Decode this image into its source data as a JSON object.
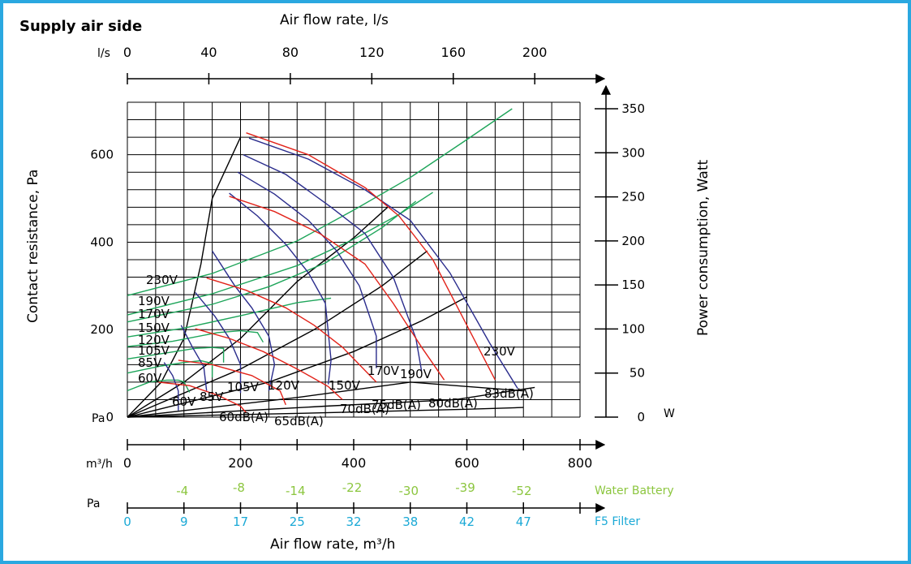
{
  "chart_data": {
    "type": "line",
    "title": "Supply air side",
    "x_top_label": "Air flow rate, l/s",
    "x_top_unit": "l/s",
    "x_top_ticks": [
      "0",
      "40",
      "80",
      "120",
      "160",
      "200"
    ],
    "x_bottom_label": "Air flow rate, m³/h",
    "x_bottom_unit": "m³/h",
    "x_bottom_ticks": [
      "0",
      "200",
      "400",
      "600",
      "800"
    ],
    "y_left_label": "Contact resistance, Pa",
    "y_left_unit": "Pa",
    "y_left_ticks": [
      "0",
      "200",
      "400",
      "600"
    ],
    "y_right_label": "Power consumption, Watt",
    "y_right_unit": "W",
    "y_right_ticks": [
      "0",
      "50",
      "100",
      "150",
      "200",
      "250",
      "300",
      "350"
    ],
    "xlim": [
      0,
      800
    ],
    "ylim": [
      0,
      720
    ],
    "grid": true,
    "colors": {
      "red": "#e2231a",
      "blue": "#2a2c8c",
      "green": "#1ea55a",
      "black": "#000000",
      "water": "#8cc63f",
      "filter": "#1ba9d6"
    },
    "pressure_curves": [
      {
        "label": "230V",
        "color": "blue",
        "points": [
          [
            215,
            638
          ],
          [
            320,
            590
          ],
          [
            420,
            520
          ],
          [
            500,
            450
          ],
          [
            570,
            330
          ],
          [
            640,
            170
          ],
          [
            690,
            65
          ]
        ]
      },
      {
        "label": "190V",
        "color": "blue",
        "points": [
          [
            205,
            600
          ],
          [
            280,
            555
          ],
          [
            360,
            480
          ],
          [
            420,
            420
          ],
          [
            470,
            320
          ],
          [
            510,
            180
          ],
          [
            520,
            105
          ]
        ]
      },
      {
        "label": "170V",
        "color": "blue",
        "points": [
          [
            195,
            560
          ],
          [
            260,
            510
          ],
          [
            320,
            450
          ],
          [
            370,
            380
          ],
          [
            410,
            300
          ],
          [
            440,
            185
          ],
          [
            440,
            112
          ]
        ]
      },
      {
        "label": "150V",
        "color": "blue",
        "points": [
          [
            180,
            512
          ],
          [
            230,
            460
          ],
          [
            280,
            395
          ],
          [
            320,
            330
          ],
          [
            350,
            260
          ],
          [
            360,
            130
          ],
          [
            355,
            75
          ]
        ]
      },
      {
        "label": "120V",
        "color": "blue",
        "points": [
          [
            150,
            380
          ],
          [
            190,
            300
          ],
          [
            220,
            250
          ],
          [
            250,
            185
          ],
          [
            260,
            120
          ],
          [
            250,
            60
          ]
        ]
      },
      {
        "label": "105V",
        "color": "blue",
        "points": [
          [
            120,
            285
          ],
          [
            155,
            230
          ],
          [
            180,
            180
          ],
          [
            200,
            120
          ],
          [
            200,
            55
          ]
        ]
      },
      {
        "label": "85V",
        "color": "blue",
        "points": [
          [
            95,
            210
          ],
          [
            115,
            160
          ],
          [
            135,
            115
          ],
          [
            140,
            60
          ]
        ]
      },
      {
        "label": "60V",
        "color": "blue",
        "points": [
          [
            65,
            125
          ],
          [
            80,
            95
          ],
          [
            90,
            60
          ],
          [
            90,
            15
          ]
        ]
      }
    ],
    "sound_curves": [
      {
        "label": "83dB(A)",
        "color": "red",
        "points": [
          [
            210,
            650
          ],
          [
            320,
            600
          ],
          [
            420,
            525
          ],
          [
            480,
            460
          ],
          [
            540,
            360
          ],
          [
            600,
            210
          ],
          [
            650,
            85
          ]
        ]
      },
      {
        "label": "80dB(A)",
        "color": "red",
        "points": [
          [
            180,
            505
          ],
          [
            260,
            470
          ],
          [
            340,
            420
          ],
          [
            420,
            350
          ],
          [
            470,
            260
          ],
          [
            520,
            160
          ],
          [
            560,
            85
          ]
        ]
      },
      {
        "label": "75dB(A)",
        "color": "red",
        "points": [
          [
            140,
            318
          ],
          [
            210,
            290
          ],
          [
            280,
            250
          ],
          [
            330,
            210
          ],
          [
            380,
            160
          ],
          [
            440,
            80
          ]
        ]
      },
      {
        "label": "70dB(A)",
        "color": "red",
        "points": [
          [
            120,
            202
          ],
          [
            180,
            180
          ],
          [
            240,
            150
          ],
          [
            300,
            110
          ],
          [
            355,
            70
          ],
          [
            380,
            40
          ]
        ]
      },
      {
        "label": "65dB(A)",
        "color": "red",
        "points": [
          [
            90,
            130
          ],
          [
            150,
            120
          ],
          [
            220,
            95
          ],
          [
            270,
            60
          ],
          [
            280,
            28
          ]
        ]
      },
      {
        "label": "60dB(A)",
        "color": "red",
        "points": [
          [
            55,
            80
          ],
          [
            110,
            72
          ],
          [
            160,
            50
          ],
          [
            200,
            25
          ],
          [
            210,
            10
          ]
        ]
      }
    ],
    "power_curves": [
      {
        "label": "230V",
        "color": "green",
        "points": [
          [
            0,
            138
          ],
          [
            150,
            163
          ],
          [
            300,
            200
          ],
          [
            400,
            235
          ],
          [
            500,
            272
          ],
          [
            600,
            315
          ],
          [
            680,
            350
          ]
        ]
      },
      {
        "label": "190V",
        "color": "green",
        "points": [
          [
            0,
            116
          ],
          [
            150,
            140
          ],
          [
            300,
            172
          ],
          [
            400,
            202
          ],
          [
            480,
            230
          ],
          [
            540,
            255
          ]
        ]
      },
      {
        "label": "170V",
        "color": "green",
        "points": [
          [
            0,
            108
          ],
          [
            150,
            128
          ],
          [
            250,
            148
          ],
          [
            350,
            175
          ],
          [
            450,
            215
          ],
          [
            510,
            245
          ]
        ]
      },
      {
        "label": "150V",
        "color": "green",
        "points": [
          [
            0,
            91
          ],
          [
            100,
            101
          ],
          [
            200,
            115
          ],
          [
            300,
            130
          ],
          [
            360,
            135
          ]
        ]
      },
      {
        "label": "120V",
        "color": "green",
        "points": [
          [
            0,
            80
          ],
          [
            80,
            86
          ],
          [
            160,
            96
          ],
          [
            200,
            98
          ],
          [
            230,
            96
          ],
          [
            240,
            85
          ]
        ]
      },
      {
        "label": "105V",
        "color": "green",
        "points": [
          [
            0,
            66
          ],
          [
            80,
            74
          ],
          [
            120,
            78
          ],
          [
            150,
            79
          ],
          [
            170,
            78
          ],
          [
            170,
            62
          ]
        ]
      },
      {
        "label": "85V",
        "color": "green",
        "points": [
          [
            0,
            50
          ],
          [
            60,
            58
          ],
          [
            100,
            62
          ],
          [
            130,
            64
          ],
          [
            150,
            61
          ],
          [
            150,
            45
          ]
        ]
      },
      {
        "label": "60V",
        "color": "green",
        "points": [
          [
            0,
            30
          ],
          [
            40,
            40
          ],
          [
            70,
            42
          ],
          [
            90,
            42
          ],
          [
            100,
            40
          ],
          [
            110,
            28
          ]
        ]
      }
    ],
    "system_lines": [
      {
        "color": "black",
        "points": [
          [
            0,
            0
          ],
          [
            60,
            80
          ],
          [
            100,
            180
          ],
          [
            130,
            350
          ],
          [
            150,
            500
          ],
          [
            200,
            640
          ]
        ]
      },
      {
        "color": "black",
        "points": [
          [
            0,
            0
          ],
          [
            100,
            80
          ],
          [
            200,
            180
          ],
          [
            300,
            310
          ],
          [
            400,
            410
          ],
          [
            460,
            480
          ]
        ]
      },
      {
        "color": "black",
        "points": [
          [
            0,
            0
          ],
          [
            200,
            110
          ],
          [
            330,
            200
          ],
          [
            450,
            300
          ],
          [
            530,
            380
          ]
        ]
      },
      {
        "color": "black",
        "points": [
          [
            0,
            0
          ],
          [
            250,
            80
          ],
          [
            400,
            150
          ],
          [
            520,
            220
          ],
          [
            600,
            275
          ]
        ]
      },
      {
        "color": "black",
        "points": [
          [
            0,
            0
          ],
          [
            300,
            45
          ],
          [
            500,
            80
          ],
          [
            700,
            60
          ]
        ]
      },
      {
        "color": "black",
        "points": [
          [
            0,
            0
          ],
          [
            350,
            25
          ],
          [
            580,
            40
          ],
          [
            720,
            68
          ]
        ]
      },
      {
        "color": "black",
        "points": [
          [
            0,
            0
          ],
          [
            350,
            10
          ],
          [
            600,
            18
          ],
          [
            700,
            22
          ]
        ]
      }
    ],
    "voltage_labels_left": [
      "230V",
      "190V",
      "170V",
      "150V",
      "120V",
      "105V",
      "85V",
      "60V"
    ],
    "voltage_labels_bottom": [
      "60V",
      "85V",
      "105V",
      "120V",
      "150V",
      "170V",
      "190V",
      "230V"
    ],
    "db_labels": [
      "60dB(A)",
      "65dB(A)",
      "70dB(A)",
      "75dB(A)",
      "80dB(A)",
      "83dB(A)"
    ],
    "pa_scale": {
      "unit": "Pa",
      "water_battery_label": "Water Battery",
      "water_battery_values": [
        "-4",
        "-8",
        "-14",
        "-22",
        "-30",
        "-39",
        "-52"
      ],
      "filter_label": "F5 Filter",
      "filter_values": [
        "0",
        "9",
        "17",
        "25",
        "32",
        "38",
        "42",
        "47"
      ]
    }
  }
}
